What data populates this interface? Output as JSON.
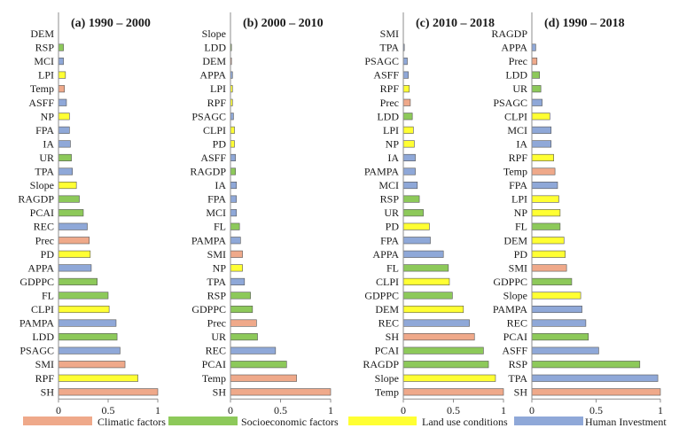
{
  "colors": {
    "Climatic factors": "#EFA98A",
    "Socioeconomic factors": "#8DC95A",
    "Land use conditions": "#FFFF33",
    "Human Investment": "#8FA8D8",
    "bar_stroke": "#555555",
    "axis": "#8c8c8c"
  },
  "chart_data": [
    {
      "type": "bar",
      "orientation": "horizontal",
      "title": "(a) 1990 – 2000",
      "xlim": [
        0,
        1
      ],
      "xticks": [
        "0",
        "0.5",
        "1"
      ],
      "categories": [
        "DEM",
        "RSP",
        "MCI",
        "LPI",
        "Temp",
        "ASFF",
        "NP",
        "FPA",
        "IA",
        "UR",
        "TPA",
        "Slope",
        "RAGDP",
        "PCAI",
        "REC",
        "Prec",
        "PD",
        "APPA",
        "GDPPC",
        "FL",
        "CLPI",
        "PAMPA",
        "LDD",
        "PSAGC",
        "SMI",
        "RPF",
        "SH"
      ],
      "values": [
        0.0,
        0.05,
        0.05,
        0.07,
        0.06,
        0.08,
        0.11,
        0.11,
        0.12,
        0.13,
        0.14,
        0.18,
        0.21,
        0.25,
        0.29,
        0.31,
        0.32,
        0.33,
        0.39,
        0.5,
        0.51,
        0.58,
        0.59,
        0.62,
        0.67,
        0.8,
        1.0
      ],
      "groups": [
        "Climatic factors",
        "Socioeconomic factors",
        "Human Investment",
        "Land use conditions",
        "Climatic factors",
        "Human Investment",
        "Land use conditions",
        "Human Investment",
        "Human Investment",
        "Socioeconomic factors",
        "Human Investment",
        "Land use conditions",
        "Socioeconomic factors",
        "Socioeconomic factors",
        "Human Investment",
        "Climatic factors",
        "Land use conditions",
        "Human Investment",
        "Socioeconomic factors",
        "Socioeconomic factors",
        "Land use conditions",
        "Human Investment",
        "Socioeconomic factors",
        "Human Investment",
        "Climatic factors",
        "Land use conditions",
        "Climatic factors"
      ]
    },
    {
      "type": "bar",
      "orientation": "horizontal",
      "title": "(b) 2000 – 2010",
      "xlim": [
        0,
        1
      ],
      "xticks": [
        "0",
        "0.5",
        "1"
      ],
      "categories": [
        "Slope",
        "LDD",
        "DEM",
        "APPA",
        "LPI",
        "RPF",
        "PSAGC",
        "CLPI",
        "PD",
        "ASFF",
        "RAGDP",
        "IA",
        "FPA",
        "MCI",
        "FL",
        "PAMPA",
        "SMI",
        "NP",
        "TPA",
        "RSP",
        "GDPPC",
        "Prec",
        "UR",
        "REC",
        "PCAI",
        "Temp",
        "SH"
      ],
      "values": [
        0.0,
        0.01,
        0.01,
        0.02,
        0.02,
        0.02,
        0.03,
        0.04,
        0.04,
        0.05,
        0.05,
        0.06,
        0.06,
        0.06,
        0.09,
        0.1,
        0.12,
        0.12,
        0.14,
        0.2,
        0.22,
        0.26,
        0.27,
        0.45,
        0.56,
        0.66,
        1.0
      ],
      "groups": [
        "Land use conditions",
        "Socioeconomic factors",
        "Climatic factors",
        "Human Investment",
        "Land use conditions",
        "Land use conditions",
        "Human Investment",
        "Land use conditions",
        "Land use conditions",
        "Human Investment",
        "Socioeconomic factors",
        "Human Investment",
        "Human Investment",
        "Human Investment",
        "Socioeconomic factors",
        "Human Investment",
        "Climatic factors",
        "Land use conditions",
        "Human Investment",
        "Socioeconomic factors",
        "Socioeconomic factors",
        "Climatic factors",
        "Socioeconomic factors",
        "Human Investment",
        "Socioeconomic factors",
        "Climatic factors",
        "Climatic factors"
      ]
    },
    {
      "type": "bar",
      "orientation": "horizontal",
      "title": "(c) 2010 – 2018",
      "xlim": [
        0,
        1
      ],
      "xticks": [
        "0",
        "0.5",
        "1"
      ],
      "categories": [
        "SMI",
        "TPA",
        "PSAGC",
        "ASFF",
        "RPF",
        "Prec",
        "LDD",
        "LPI",
        "NP",
        "IA",
        "PAMPA",
        "MCI",
        "RSP",
        "UR",
        "PD",
        "FPA",
        "APPA",
        "FL",
        "CLPI",
        "GDPPC",
        "DEM",
        "REC",
        "SH",
        "PCAI",
        "RAGDP",
        "Slope",
        "Temp"
      ],
      "values": [
        0.0,
        0.01,
        0.04,
        0.05,
        0.06,
        0.07,
        0.09,
        0.1,
        0.11,
        0.12,
        0.12,
        0.14,
        0.16,
        0.2,
        0.26,
        0.27,
        0.4,
        0.45,
        0.46,
        0.49,
        0.6,
        0.66,
        0.71,
        0.8,
        0.85,
        0.92,
        1.0
      ],
      "groups": [
        "Climatic factors",
        "Human Investment",
        "Human Investment",
        "Human Investment",
        "Land use conditions",
        "Climatic factors",
        "Socioeconomic factors",
        "Land use conditions",
        "Land use conditions",
        "Human Investment",
        "Human Investment",
        "Human Investment",
        "Socioeconomic factors",
        "Socioeconomic factors",
        "Land use conditions",
        "Human Investment",
        "Human Investment",
        "Socioeconomic factors",
        "Land use conditions",
        "Socioeconomic factors",
        "Land use conditions",
        "Human Investment",
        "Climatic factors",
        "Socioeconomic factors",
        "Socioeconomic factors",
        "Land use conditions",
        "Climatic factors"
      ]
    },
    {
      "type": "bar",
      "orientation": "horizontal",
      "title": "(d) 1990 – 2018",
      "xlim": [
        0,
        1
      ],
      "xticks": [
        "0",
        "0.5",
        "1"
      ],
      "categories": [
        "RAGDP",
        "APPA",
        "Prec",
        "LDD",
        "UR",
        "PSAGC",
        "CLPI",
        "MCI",
        "IA",
        "RPF",
        "Temp",
        "FPA",
        "LPI",
        "NP",
        "FL",
        "DEM",
        "PD",
        "SMI",
        "GDPPC",
        "Slope",
        "PAMPA",
        "REC",
        "PCAI",
        "ASFF",
        "RSP",
        "TPA",
        "SH"
      ],
      "values": [
        0.0,
        0.03,
        0.04,
        0.06,
        0.07,
        0.08,
        0.14,
        0.15,
        0.15,
        0.17,
        0.18,
        0.2,
        0.21,
        0.22,
        0.22,
        0.25,
        0.26,
        0.27,
        0.31,
        0.38,
        0.39,
        0.42,
        0.44,
        0.52,
        0.84,
        0.98,
        1.0
      ],
      "groups": [
        "Socioeconomic factors",
        "Human Investment",
        "Climatic factors",
        "Socioeconomic factors",
        "Socioeconomic factors",
        "Human Investment",
        "Land use conditions",
        "Human Investment",
        "Human Investment",
        "Land use conditions",
        "Climatic factors",
        "Human Investment",
        "Land use conditions",
        "Land use conditions",
        "Socioeconomic factors",
        "Land use conditions",
        "Land use conditions",
        "Climatic factors",
        "Socioeconomic factors",
        "Land use conditions",
        "Human Investment",
        "Human Investment",
        "Socioeconomic factors",
        "Human Investment",
        "Socioeconomic factors",
        "Human Investment",
        "Climatic factors"
      ]
    }
  ],
  "legend": {
    "placement": "bottom",
    "entries": [
      "Climatic factors",
      "Socioeconomic factors",
      "Land use conditions",
      "Human Investment"
    ]
  }
}
